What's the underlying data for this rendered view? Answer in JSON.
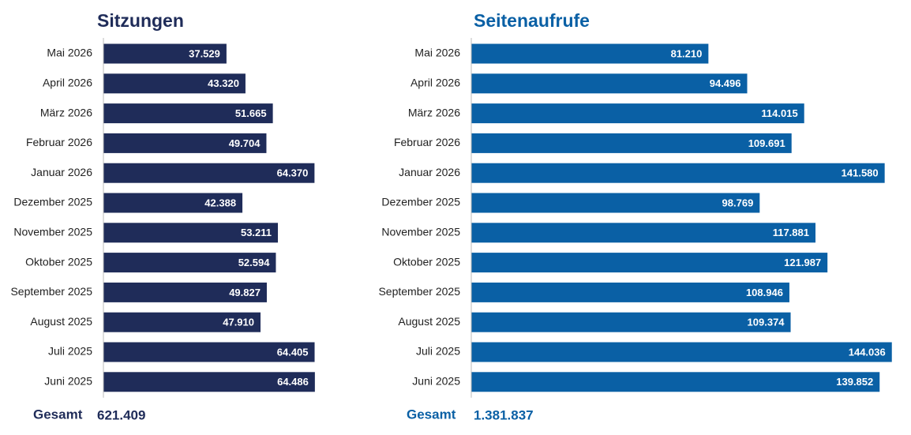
{
  "chart_data": [
    {
      "type": "bar",
      "orientation": "horizontal",
      "title": "Sitzungen",
      "color": "#1f2c59",
      "categories": [
        "Mai 2026",
        "April 2026",
        "März 2026",
        "Februar 2026",
        "Januar 2026",
        "Dezember 2025",
        "November 2025",
        "Oktober 2025",
        "September 2025",
        "August 2025",
        "Juli 2025",
        "Juni 2025"
      ],
      "values": [
        37529,
        43320,
        51665,
        49704,
        64370,
        42388,
        53211,
        52594,
        49827,
        47910,
        64405,
        64486
      ],
      "value_labels": [
        "37.529",
        "43.320",
        "51.665",
        "49.704",
        "64.370",
        "42.388",
        "53.211",
        "52.594",
        "49.827",
        "47.910",
        "64.405",
        "64.486"
      ],
      "xlim": [
        0,
        65000
      ],
      "total_label": "Gesamt",
      "total": "621.409"
    },
    {
      "type": "bar",
      "orientation": "horizontal",
      "title": "Seitenaufrufe",
      "color": "#0a60a5",
      "categories": [
        "Mai 2026",
        "April 2026",
        "März 2026",
        "Februar 2026",
        "Januar 2026",
        "Dezember 2025",
        "November 2025",
        "Oktober 2025",
        "September 2025",
        "August 2025",
        "Juli 2025",
        "Juni 2025"
      ],
      "values": [
        81210,
        94496,
        114015,
        109691,
        141580,
        98769,
        117881,
        121987,
        108946,
        109374,
        144036,
        139852
      ],
      "value_labels": [
        "81.210",
        "94.496",
        "114.015",
        "109.691",
        "141.580",
        "98.769",
        "117.881",
        "121.987",
        "108.946",
        "109.374",
        "144.036",
        "139.852"
      ],
      "xlim": [
        0,
        146000
      ],
      "total_label": "Gesamt",
      "total": "1.381.837"
    }
  ]
}
